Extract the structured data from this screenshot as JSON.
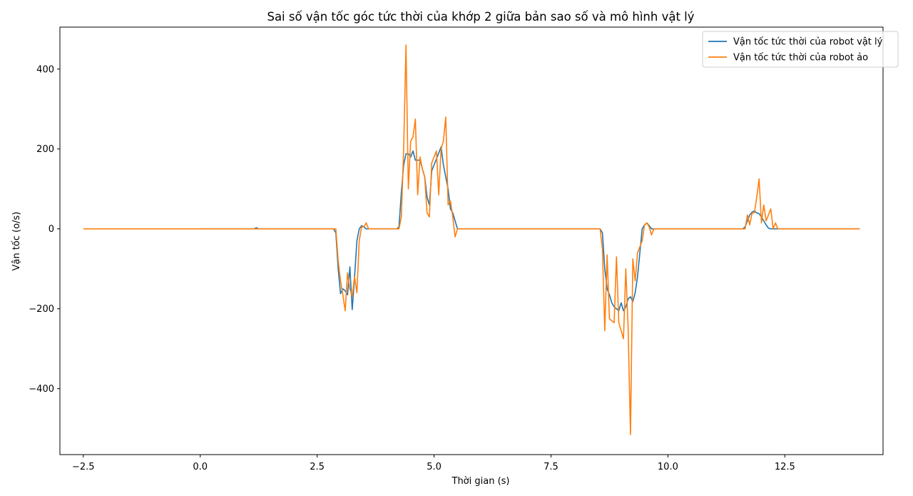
{
  "chart_data": {
    "type": "line",
    "title": "Sai số vận tốc góc tức thời của khớp 2 giữa bản sao số và mô hình vật lý",
    "xlabel": "Thời gian (s)",
    "ylabel": "Vận tốc (o/s)",
    "xlim": [
      -3.0,
      14.6
    ],
    "ylim": [
      -565,
      505
    ],
    "xticks": [
      -2.5,
      0.0,
      2.5,
      5.0,
      7.5,
      10.0,
      12.5
    ],
    "xtick_labels": [
      "−2.5",
      "0.0",
      "2.5",
      "5.0",
      "7.5",
      "10.0",
      "12.5"
    ],
    "yticks": [
      -400,
      -200,
      0,
      200,
      400
    ],
    "ytick_labels": [
      "−400",
      "−200",
      "0",
      "200",
      "400"
    ],
    "grid": false,
    "legend_position": "top-right",
    "series": [
      {
        "name": "Vận tốc tức thời của robot vật lý",
        "color": "#1f77b4",
        "x": [
          0.0,
          1.15,
          1.2,
          1.25,
          2.85,
          2.9,
          2.95,
          3.0,
          3.05,
          3.1,
          3.15,
          3.2,
          3.25,
          3.3,
          3.35,
          3.4,
          3.45,
          3.5,
          3.55,
          3.6,
          3.65,
          4.2,
          4.25,
          4.3,
          4.35,
          4.4,
          4.45,
          4.5,
          4.55,
          4.6,
          4.65,
          4.7,
          4.75,
          4.8,
          4.85,
          4.9,
          4.95,
          5.0,
          5.05,
          5.1,
          5.15,
          5.2,
          5.25,
          5.3,
          5.35,
          5.4,
          5.45,
          5.5,
          5.55,
          5.6,
          5.65,
          8.5,
          8.55,
          8.6,
          8.65,
          8.7,
          8.75,
          8.8,
          8.85,
          8.9,
          8.95,
          9.0,
          9.05,
          9.1,
          9.15,
          9.2,
          9.25,
          9.3,
          9.35,
          9.4,
          9.45,
          9.5,
          9.55,
          9.6,
          9.65,
          9.7,
          9.75,
          9.8,
          9.85,
          11.6,
          11.65,
          11.7,
          11.75,
          11.8,
          11.85,
          11.9,
          11.95,
          12.0,
          12.05,
          12.1,
          12.15,
          12.2,
          12.25,
          12.3,
          14.1
        ],
        "y": [
          0,
          0,
          3,
          0,
          0,
          -10,
          -100,
          -162,
          -150,
          -155,
          -165,
          -95,
          -202,
          -120,
          -30,
          0,
          8,
          5,
          0,
          0,
          0,
          0,
          5,
          90,
          160,
          188,
          188,
          180,
          195,
          172,
          172,
          172,
          150,
          130,
          80,
          60,
          145,
          160,
          175,
          190,
          205,
          160,
          130,
          100,
          50,
          40,
          20,
          0,
          0,
          0,
          0,
          0,
          0,
          -10,
          -100,
          -150,
          -165,
          -185,
          -195,
          -200,
          -205,
          -185,
          -205,
          -195,
          -175,
          -170,
          -182,
          -160,
          -120,
          -60,
          0,
          10,
          15,
          8,
          0,
          0,
          0,
          0,
          0,
          0,
          5,
          20,
          35,
          42,
          45,
          40,
          38,
          30,
          20,
          10,
          2,
          0,
          0,
          0,
          0
        ]
      },
      {
        "name": "Vận tốc tức thời của robot ảo",
        "color": "#ff7f0e",
        "x": [
          -2.5,
          2.85,
          2.9,
          2.95,
          3.0,
          3.05,
          3.1,
          3.15,
          3.2,
          3.25,
          3.3,
          3.35,
          3.4,
          3.45,
          3.5,
          3.55,
          3.6,
          4.2,
          4.25,
          4.3,
          4.35,
          4.4,
          4.45,
          4.5,
          4.55,
          4.6,
          4.65,
          4.7,
          4.75,
          4.8,
          4.85,
          4.9,
          4.95,
          5.0,
          5.05,
          5.1,
          5.15,
          5.2,
          5.25,
          5.3,
          5.35,
          5.4,
          5.45,
          5.5,
          5.55,
          5.6,
          5.65,
          8.5,
          8.55,
          8.6,
          8.65,
          8.7,
          8.75,
          8.8,
          8.85,
          8.9,
          8.95,
          9.0,
          9.05,
          9.1,
          9.15,
          9.2,
          9.25,
          9.3,
          9.35,
          9.4,
          9.45,
          9.5,
          9.55,
          9.6,
          9.65,
          9.7,
          9.75,
          9.8,
          9.85,
          11.6,
          11.65,
          11.7,
          11.75,
          11.8,
          11.85,
          11.9,
          11.95,
          12.0,
          12.05,
          12.1,
          12.15,
          12.2,
          12.25,
          12.3,
          12.35,
          14.1
        ],
        "y": [
          0,
          0,
          0,
          -80,
          -130,
          -165,
          -205,
          -110,
          -150,
          -170,
          -120,
          -160,
          -30,
          5,
          5,
          15,
          0,
          0,
          0,
          30,
          200,
          460,
          100,
          220,
          230,
          275,
          85,
          180,
          150,
          130,
          40,
          30,
          165,
          180,
          195,
          85,
          200,
          220,
          280,
          60,
          70,
          30,
          -20,
          0,
          0,
          0,
          0,
          0,
          0,
          -50,
          -255,
          -65,
          -225,
          -230,
          -235,
          -70,
          -235,
          -255,
          -275,
          -100,
          -250,
          -515,
          -75,
          -130,
          -60,
          -45,
          -30,
          10,
          15,
          5,
          -15,
          0,
          0,
          0,
          0,
          0,
          0,
          35,
          10,
          40,
          40,
          80,
          125,
          15,
          60,
          20,
          35,
          50,
          0,
          15,
          0,
          0
        ]
      }
    ]
  }
}
